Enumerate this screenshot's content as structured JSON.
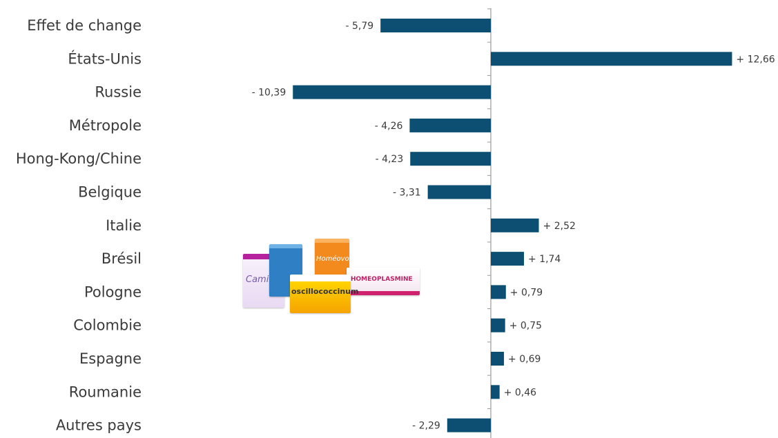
{
  "chart_data": {
    "type": "bar",
    "orientation": "horizontal",
    "categories": [
      "Effet de change",
      "États-Unis",
      "Russie",
      "Métropole",
      "Hong-Kong/Chine",
      "Belgique",
      "Italie",
      "Brésil",
      "Pologne",
      "Colombie",
      "Espagne",
      "Roumanie",
      "Autres pays"
    ],
    "values": [
      -5.79,
      12.66,
      -10.39,
      -4.26,
      -4.23,
      -3.31,
      2.52,
      1.74,
      0.79,
      0.75,
      0.69,
      0.46,
      -2.29
    ],
    "labels": [
      "- 5,79",
      "+ 12,66",
      "- 10,39",
      "- 4,26",
      "- 4,23",
      "- 3,31",
      "+ 2,52",
      "+ 1,74",
      "+ 0,79",
      "+ 0,75",
      "+ 0,69",
      "+ 0,46",
      "- 2,29"
    ],
    "title": "",
    "xlabel": "",
    "ylabel": "",
    "xlim": [
      -11,
      13
    ],
    "grid": false,
    "legend": "none",
    "colors": {
      "bar": "#0c4f72",
      "axis": "#9a9a9a",
      "text": "#3a3a3a"
    }
  },
  "image": {
    "products": {
      "camilia": "Camilia",
      "homeovox": "Homéovox",
      "oscillococcinum": "oscillococcinum",
      "homeoplasmine": "HOMEOPLASMINE"
    }
  }
}
